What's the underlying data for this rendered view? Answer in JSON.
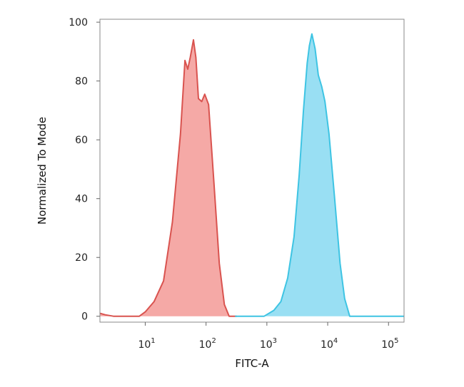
{
  "chart_data": {
    "type": "area",
    "xlabel": "FITC-A",
    "ylabel": "Normalized To Mode",
    "x_scale": "log",
    "xlim": [
      1.8,
      180000
    ],
    "ylim": [
      -2,
      101
    ],
    "x_ticks": [
      {
        "value": 10,
        "base": "10",
        "exp": "1"
      },
      {
        "value": 100,
        "base": "10",
        "exp": "2"
      },
      {
        "value": 1000,
        "base": "10",
        "exp": "3"
      },
      {
        "value": 10000,
        "base": "10",
        "exp": "4"
      },
      {
        "value": 100000,
        "base": "10",
        "exp": "5"
      }
    ],
    "y_ticks": [
      {
        "value": 0,
        "label": "0"
      },
      {
        "value": 20,
        "label": "20"
      },
      {
        "value": 40,
        "label": "40"
      },
      {
        "value": 60,
        "label": "60"
      },
      {
        "value": 80,
        "label": "80"
      },
      {
        "value": 100,
        "label": "100"
      }
    ],
    "grid": false,
    "legend": "none",
    "series": [
      {
        "fill": "#f4a09c",
        "stroke": "#d9534f",
        "points": [
          [
            1.8,
            1
          ],
          [
            2.2,
            0.5
          ],
          [
            3,
            0
          ],
          [
            8,
            0
          ],
          [
            10,
            1.5
          ],
          [
            14,
            5
          ],
          [
            20,
            12
          ],
          [
            28,
            32
          ],
          [
            38,
            62
          ],
          [
            45,
            87
          ],
          [
            50,
            84
          ],
          [
            55,
            88
          ],
          [
            62,
            94
          ],
          [
            68,
            88
          ],
          [
            75,
            74
          ],
          [
            85,
            73
          ],
          [
            95,
            75.5
          ],
          [
            110,
            72
          ],
          [
            135,
            45
          ],
          [
            165,
            18
          ],
          [
            200,
            4
          ],
          [
            240,
            0
          ],
          [
            320,
            0
          ]
        ]
      },
      {
        "fill": "#8edcf2",
        "stroke": "#3ec4e3",
        "points": [
          [
            300,
            0
          ],
          [
            900,
            0
          ],
          [
            1300,
            2
          ],
          [
            1700,
            5
          ],
          [
            2200,
            13
          ],
          [
            2800,
            27
          ],
          [
            3400,
            48
          ],
          [
            4000,
            70
          ],
          [
            4600,
            86
          ],
          [
            5000,
            92
          ],
          [
            5500,
            96
          ],
          [
            6200,
            91
          ],
          [
            7000,
            82
          ],
          [
            8000,
            78
          ],
          [
            9000,
            73
          ],
          [
            10500,
            62
          ],
          [
            13000,
            40
          ],
          [
            16000,
            18
          ],
          [
            19000,
            6
          ],
          [
            23000,
            0
          ],
          [
            180000,
            0
          ]
        ]
      }
    ]
  }
}
